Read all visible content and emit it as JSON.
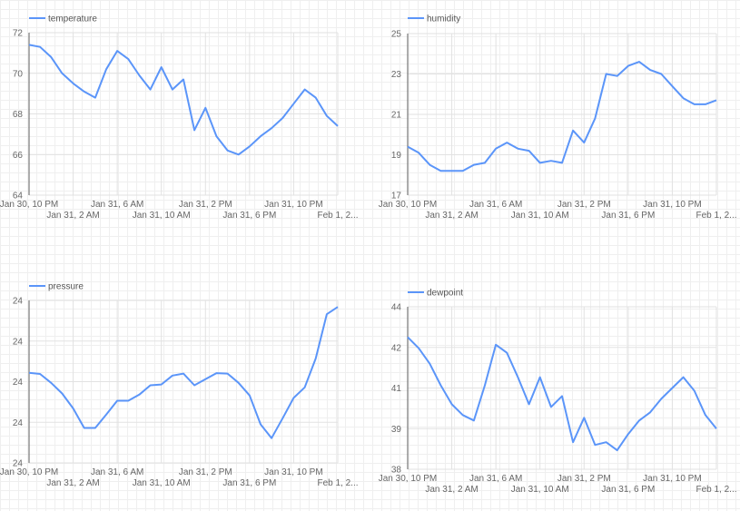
{
  "line_color": "#5b95f9",
  "chart_data": [
    {
      "type": "line",
      "legend": "temperature",
      "legend_position": "top-left",
      "grid": true,
      "ylim": [
        64,
        72
      ],
      "y_ticks": [
        64,
        66,
        68,
        70,
        72
      ],
      "y_tick_labels": [
        "64",
        "66",
        "68",
        "70",
        "72"
      ],
      "x_tick_labels": [
        "Jan 30, 10 PM",
        "Jan 31, 2 AM",
        "Jan 31, 6 AM",
        "Jan 31, 10 AM",
        "Jan 31, 2 PM",
        "Jan 31, 6 PM",
        "Jan 31, 10 PM",
        "Feb 1, 2..."
      ],
      "values": [
        71.4,
        71.3,
        70.8,
        70.0,
        69.5,
        69.1,
        68.8,
        70.2,
        71.1,
        70.7,
        69.9,
        69.2,
        70.3,
        69.2,
        69.7,
        67.2,
        68.3,
        66.9,
        66.2,
        66.0,
        66.4,
        66.9,
        67.3,
        67.8,
        68.5,
        69.2,
        68.8,
        67.9,
        67.4
      ]
    },
    {
      "type": "line",
      "legend": "humidity",
      "legend_position": "top-left",
      "grid": true,
      "ylim": [
        17,
        25
      ],
      "y_ticks": [
        17,
        19,
        21,
        23,
        25
      ],
      "y_tick_labels": [
        "17",
        "19",
        "21",
        "23",
        "25"
      ],
      "x_tick_labels": [
        "Jan 30, 10 PM",
        "Jan 31, 2 AM",
        "Jan 31, 6 AM",
        "Jan 31, 10 AM",
        "Jan 31, 2 PM",
        "Jan 31, 6 PM",
        "Jan 31, 10 PM",
        "Feb 1, 2..."
      ],
      "values": [
        19.4,
        19.1,
        18.5,
        18.2,
        18.2,
        18.2,
        18.5,
        18.6,
        19.3,
        19.6,
        19.3,
        19.2,
        18.6,
        18.7,
        18.6,
        20.2,
        19.6,
        20.8,
        23.0,
        22.9,
        23.4,
        23.6,
        23.2,
        23.0,
        22.4,
        21.8,
        21.5,
        21.5,
        21.7
      ]
    },
    {
      "type": "line",
      "legend": "pressure",
      "legend_position": "top-left",
      "grid": true,
      "ylim": [
        23.8,
        24.2
      ],
      "y_ticks": [
        23.8,
        23.9,
        24.0,
        24.1,
        24.2
      ],
      "y_tick_labels": [
        "24",
        "24",
        "24",
        "24",
        "24"
      ],
      "x_tick_labels": [
        "Jan 30, 10 PM",
        "Jan 31, 2 AM",
        "Jan 31, 6 AM",
        "Jan 31, 10 AM",
        "Jan 31, 2 PM",
        "Jan 31, 6 PM",
        "Jan 31, 10 PM",
        "Feb 1, 2..."
      ],
      "values": [
        24.022,
        24.019,
        23.997,
        23.971,
        23.934,
        23.886,
        23.886,
        23.919,
        23.953,
        23.953,
        23.968,
        23.991,
        23.993,
        24.015,
        24.02,
        23.991,
        24.006,
        24.021,
        24.02,
        23.997,
        23.966,
        23.895,
        23.861,
        23.91,
        23.96,
        23.986,
        24.057,
        24.166,
        24.184
      ]
    },
    {
      "type": "line",
      "legend": "dewpoint",
      "legend_position": "top-left",
      "grid": true,
      "ylim": [
        38,
        44
      ],
      "y_ticks": [
        38,
        39.5,
        41,
        42.5,
        44
      ],
      "y_tick_labels": [
        "38",
        "39",
        "41",
        "42",
        "44"
      ],
      "x_tick_labels": [
        "Jan 30, 10 PM",
        "Jan 31, 2 AM",
        "Jan 31, 6 AM",
        "Jan 31, 10 AM",
        "Jan 31, 2 PM",
        "Jan 31, 6 PM",
        "Jan 31, 10 PM",
        "Feb 1, 2..."
      ],
      "values": [
        42.88,
        42.47,
        41.9,
        41.1,
        40.4,
        40.0,
        39.8,
        41.1,
        42.6,
        42.3,
        41.4,
        40.4,
        41.4,
        40.3,
        40.7,
        39.0,
        39.9,
        38.9,
        39.0,
        38.7,
        39.3,
        39.8,
        40.1,
        40.6,
        41.0,
        41.4,
        40.9,
        40.0,
        39.5
      ]
    }
  ]
}
